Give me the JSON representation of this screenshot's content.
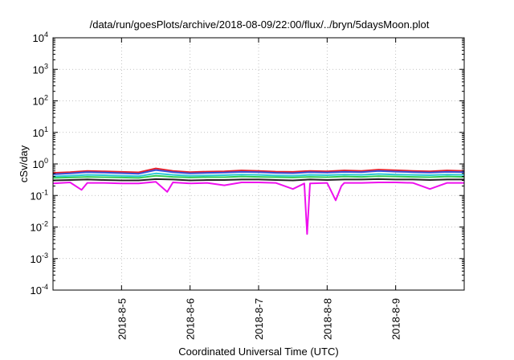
{
  "chart_data": {
    "type": "line",
    "title": "/data/run/goesPlots/archive/2018-08-09/22:00/flux/../bryn/5daysMoon.plot",
    "xlabel": "Coordinated Universal Time (UTC)",
    "ylabel": "cSv/day",
    "yscale": "log",
    "ylim": [
      0.0001,
      10000
    ],
    "xlim": [
      "2018-08-04 00:00",
      "2018-08-10 00:00"
    ],
    "grid": true,
    "legend": "none",
    "x_ticks": [
      "2018-8-5",
      "2018-8-6",
      "2018-8-7",
      "2018-8-8",
      "2018-8-9"
    ],
    "x_tick_dates": [
      "2018-08-05 00:00",
      "2018-08-06 00:00",
      "2018-08-07 00:00",
      "2018-08-08 00:00",
      "2018-08-09 00:00"
    ],
    "y_ticks": [
      {
        "value": 0.0001,
        "base": "10",
        "exp": "-4"
      },
      {
        "value": 0.001,
        "base": "10",
        "exp": "-3"
      },
      {
        "value": 0.01,
        "base": "10",
        "exp": "-2"
      },
      {
        "value": 0.1,
        "base": "10",
        "exp": "-1"
      },
      {
        "value": 1,
        "base": "10",
        "exp": "0"
      },
      {
        "value": 10,
        "base": "10",
        "exp": "1"
      },
      {
        "value": 100,
        "base": "10",
        "exp": "2"
      },
      {
        "value": 1000,
        "base": "10",
        "exp": "3"
      },
      {
        "value": 10000,
        "base": "10",
        "exp": "4"
      }
    ],
    "series": [
      {
        "color": "#e8202a",
        "x": [
          "2018-08-04 00:00",
          "2018-08-04 06:00",
          "2018-08-04 12:00",
          "2018-08-04 18:00",
          "2018-08-05 00:00",
          "2018-08-05 06:00",
          "2018-08-05 12:00",
          "2018-08-05 18:00",
          "2018-08-06 00:00",
          "2018-08-06 06:00",
          "2018-08-06 12:00",
          "2018-08-06 18:00",
          "2018-08-07 00:00",
          "2018-08-07 06:00",
          "2018-08-07 12:00",
          "2018-08-07 18:00",
          "2018-08-08 00:00",
          "2018-08-08 06:00",
          "2018-08-08 12:00",
          "2018-08-08 18:00",
          "2018-08-09 00:00",
          "2018-08-09 06:00",
          "2018-08-09 12:00",
          "2018-08-09 18:00",
          "2018-08-10 00:00"
        ],
        "values": [
          0.52,
          0.55,
          0.6,
          0.58,
          0.56,
          0.54,
          0.72,
          0.6,
          0.55,
          0.57,
          0.58,
          0.62,
          0.6,
          0.57,
          0.56,
          0.6,
          0.58,
          0.62,
          0.6,
          0.66,
          0.63,
          0.6,
          0.58,
          0.62,
          0.6
        ]
      },
      {
        "color": "#3a4fd8",
        "x": [
          "2018-08-04 00:00",
          "2018-08-04 06:00",
          "2018-08-04 12:00",
          "2018-08-04 18:00",
          "2018-08-05 00:00",
          "2018-08-05 06:00",
          "2018-08-05 12:00",
          "2018-08-05 18:00",
          "2018-08-06 00:00",
          "2018-08-06 06:00",
          "2018-08-06 12:00",
          "2018-08-06 18:00",
          "2018-08-07 00:00",
          "2018-08-07 06:00",
          "2018-08-07 12:00",
          "2018-08-07 18:00",
          "2018-08-08 00:00",
          "2018-08-08 06:00",
          "2018-08-08 12:00",
          "2018-08-08 18:00",
          "2018-08-09 00:00",
          "2018-08-09 06:00",
          "2018-08-09 12:00",
          "2018-08-09 18:00",
          "2018-08-10 00:00"
        ],
        "values": [
          0.47,
          0.5,
          0.55,
          0.53,
          0.51,
          0.49,
          0.64,
          0.55,
          0.5,
          0.52,
          0.53,
          0.56,
          0.55,
          0.52,
          0.51,
          0.55,
          0.53,
          0.56,
          0.55,
          0.6,
          0.57,
          0.55,
          0.53,
          0.56,
          0.55
        ]
      },
      {
        "color": "#2ec8d8",
        "x": [
          "2018-08-04 00:00",
          "2018-08-04 06:00",
          "2018-08-04 12:00",
          "2018-08-04 18:00",
          "2018-08-05 00:00",
          "2018-08-05 06:00",
          "2018-08-05 12:00",
          "2018-08-05 18:00",
          "2018-08-06 00:00",
          "2018-08-06 06:00",
          "2018-08-06 12:00",
          "2018-08-06 18:00",
          "2018-08-07 00:00",
          "2018-08-07 06:00",
          "2018-08-07 12:00",
          "2018-08-07 18:00",
          "2018-08-08 00:00",
          "2018-08-08 06:00",
          "2018-08-08 12:00",
          "2018-08-08 18:00",
          "2018-08-09 00:00",
          "2018-08-09 06:00",
          "2018-08-09 12:00",
          "2018-08-09 18:00",
          "2018-08-10 00:00"
        ],
        "values": [
          0.4,
          0.42,
          0.45,
          0.44,
          0.42,
          0.41,
          0.5,
          0.45,
          0.42,
          0.43,
          0.44,
          0.46,
          0.45,
          0.43,
          0.42,
          0.45,
          0.44,
          0.46,
          0.45,
          0.48,
          0.46,
          0.45,
          0.44,
          0.46,
          0.45
        ]
      },
      {
        "color": "#33cc55",
        "x": [
          "2018-08-04 00:00",
          "2018-08-04 06:00",
          "2018-08-04 12:00",
          "2018-08-04 18:00",
          "2018-08-05 00:00",
          "2018-08-05 06:00",
          "2018-08-05 12:00",
          "2018-08-05 18:00",
          "2018-08-06 00:00",
          "2018-08-06 06:00",
          "2018-08-06 12:00",
          "2018-08-06 18:00",
          "2018-08-07 00:00",
          "2018-08-07 06:00",
          "2018-08-07 12:00",
          "2018-08-07 18:00",
          "2018-08-08 00:00",
          "2018-08-08 06:00",
          "2018-08-08 12:00",
          "2018-08-08 18:00",
          "2018-08-09 00:00",
          "2018-08-09 06:00",
          "2018-08-09 12:00",
          "2018-08-09 18:00",
          "2018-08-10 00:00"
        ],
        "values": [
          0.36,
          0.37,
          0.39,
          0.38,
          0.37,
          0.36,
          0.42,
          0.39,
          0.37,
          0.38,
          0.38,
          0.4,
          0.39,
          0.38,
          0.37,
          0.39,
          0.38,
          0.4,
          0.39,
          0.41,
          0.4,
          0.39,
          0.38,
          0.4,
          0.39
        ]
      },
      {
        "color": "#222222",
        "x": [
          "2018-08-04 00:00",
          "2018-08-04 06:00",
          "2018-08-04 12:00",
          "2018-08-04 18:00",
          "2018-08-05 00:00",
          "2018-08-05 06:00",
          "2018-08-05 12:00",
          "2018-08-05 18:00",
          "2018-08-06 00:00",
          "2018-08-06 06:00",
          "2018-08-06 12:00",
          "2018-08-06 18:00",
          "2018-08-07 00:00",
          "2018-08-07 06:00",
          "2018-08-07 12:00",
          "2018-08-07 18:00",
          "2018-08-08 00:00",
          "2018-08-08 06:00",
          "2018-08-08 12:00",
          "2018-08-08 18:00",
          "2018-08-09 00:00",
          "2018-08-09 06:00",
          "2018-08-09 12:00",
          "2018-08-09 18:00",
          "2018-08-10 00:00"
        ],
        "values": [
          0.3,
          0.31,
          0.32,
          0.31,
          0.3,
          0.3,
          0.33,
          0.32,
          0.3,
          0.31,
          0.31,
          0.32,
          0.32,
          0.31,
          0.3,
          0.32,
          0.31,
          0.32,
          0.32,
          0.33,
          0.32,
          0.32,
          0.31,
          0.32,
          0.32
        ]
      },
      {
        "color": "#ee10ee",
        "x": [
          "2018-08-04 00:00",
          "2018-08-04 06:00",
          "2018-08-04 10:00",
          "2018-08-04 12:00",
          "2018-08-04 18:00",
          "2018-08-05 00:00",
          "2018-08-05 06:00",
          "2018-08-05 12:00",
          "2018-08-05 16:00",
          "2018-08-05 18:00",
          "2018-08-06 00:00",
          "2018-08-06 06:00",
          "2018-08-06 12:00",
          "2018-08-06 18:00",
          "2018-08-07 00:00",
          "2018-08-07 06:00",
          "2018-08-07 12:00",
          "2018-08-07 16:00",
          "2018-08-07 17:00",
          "2018-08-07 18:00",
          "2018-08-08 00:00",
          "2018-08-08 03:00",
          "2018-08-08 05:00",
          "2018-08-08 06:00",
          "2018-08-08 12:00",
          "2018-08-08 18:00",
          "2018-08-09 00:00",
          "2018-08-09 06:00",
          "2018-08-09 12:00",
          "2018-08-09 18:00",
          "2018-08-10 00:00"
        ],
        "values": [
          0.24,
          0.26,
          0.15,
          0.25,
          0.25,
          0.24,
          0.24,
          0.27,
          0.13,
          0.26,
          0.24,
          0.25,
          0.21,
          0.26,
          0.26,
          0.25,
          0.16,
          0.24,
          0.006,
          0.24,
          0.25,
          0.07,
          0.2,
          0.25,
          0.25,
          0.26,
          0.26,
          0.25,
          0.16,
          0.25,
          0.25
        ]
      }
    ]
  }
}
